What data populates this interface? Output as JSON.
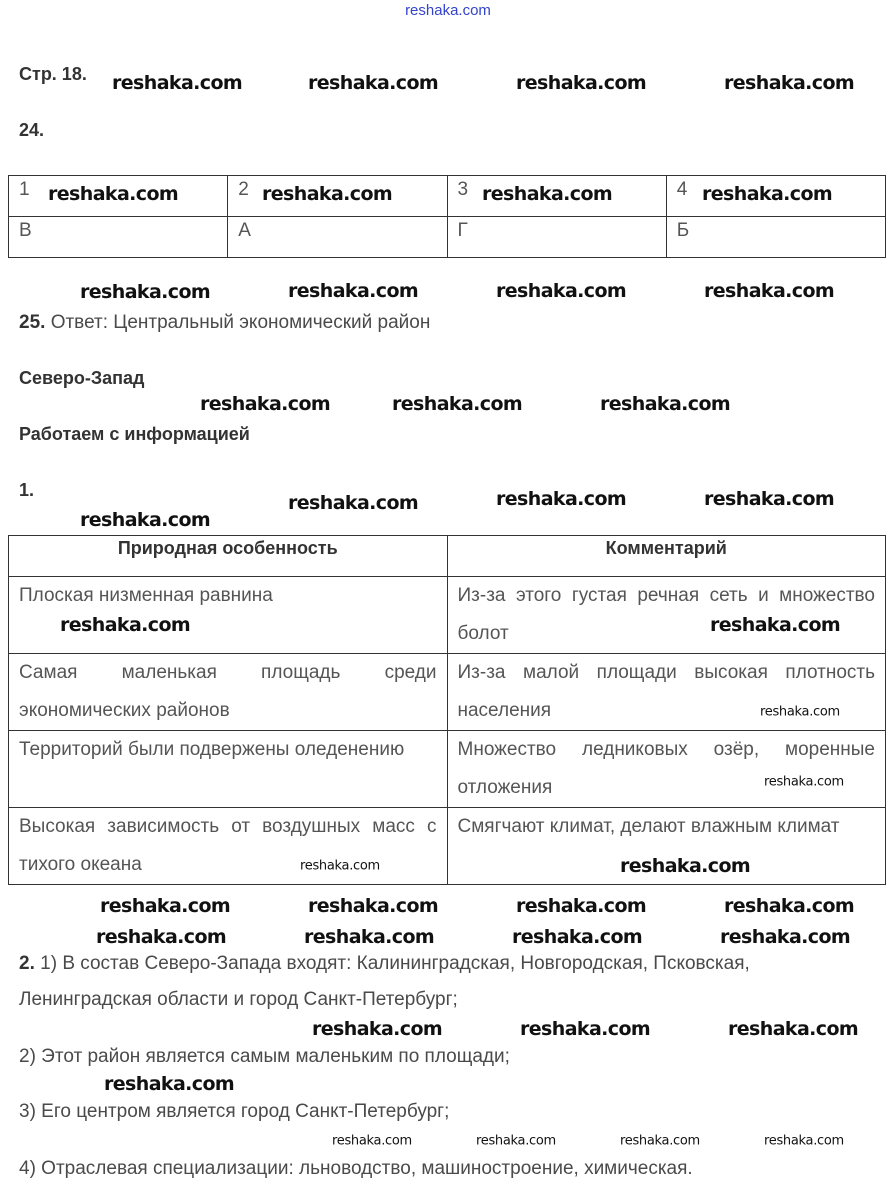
{
  "watermark": "reshaka.com",
  "page_label": "Стр. 18.",
  "task24": {
    "number": "24.",
    "headers": [
      "1",
      "2",
      "3",
      "4"
    ],
    "answers": [
      "В",
      "А",
      "Г",
      "Б"
    ]
  },
  "task25": {
    "number": "25.",
    "text": "Ответ: Центральный экономический район"
  },
  "section_title": "Северо-Запад",
  "subsection_title": "Работаем с информацией",
  "task1": {
    "number": "1.",
    "headers": [
      "Природная особенность",
      "Комментарий"
    ],
    "rows": [
      [
        "Плоская низменная равнина",
        "Из-за этого густая речная сеть и множество болот"
      ],
      [
        "Самая маленькая площадь среди экономических районов",
        "Из-за малой площади высокая плотность населения"
      ],
      [
        "Территорий были подвержены оледенению",
        "Множество ледниковых озёр, моренные отложения"
      ],
      [
        "Высокая зависимость от воздушных масс с тихого океана",
        "Смягчают климат, делают влажным климат"
      ]
    ]
  },
  "task2": {
    "number": "2.",
    "items": [
      "1) В состав Северо-Запада входят: Калининградская, Новгородская, Псковская,",
      "Ленинградская области и город Санкт-Петербург;",
      "2) Этот район является самым маленьким по площади;",
      "3) Его центром является город Санкт-Петербург;",
      "4) Отраслевая специализации: льноводство, машиностроение, химическая."
    ]
  }
}
